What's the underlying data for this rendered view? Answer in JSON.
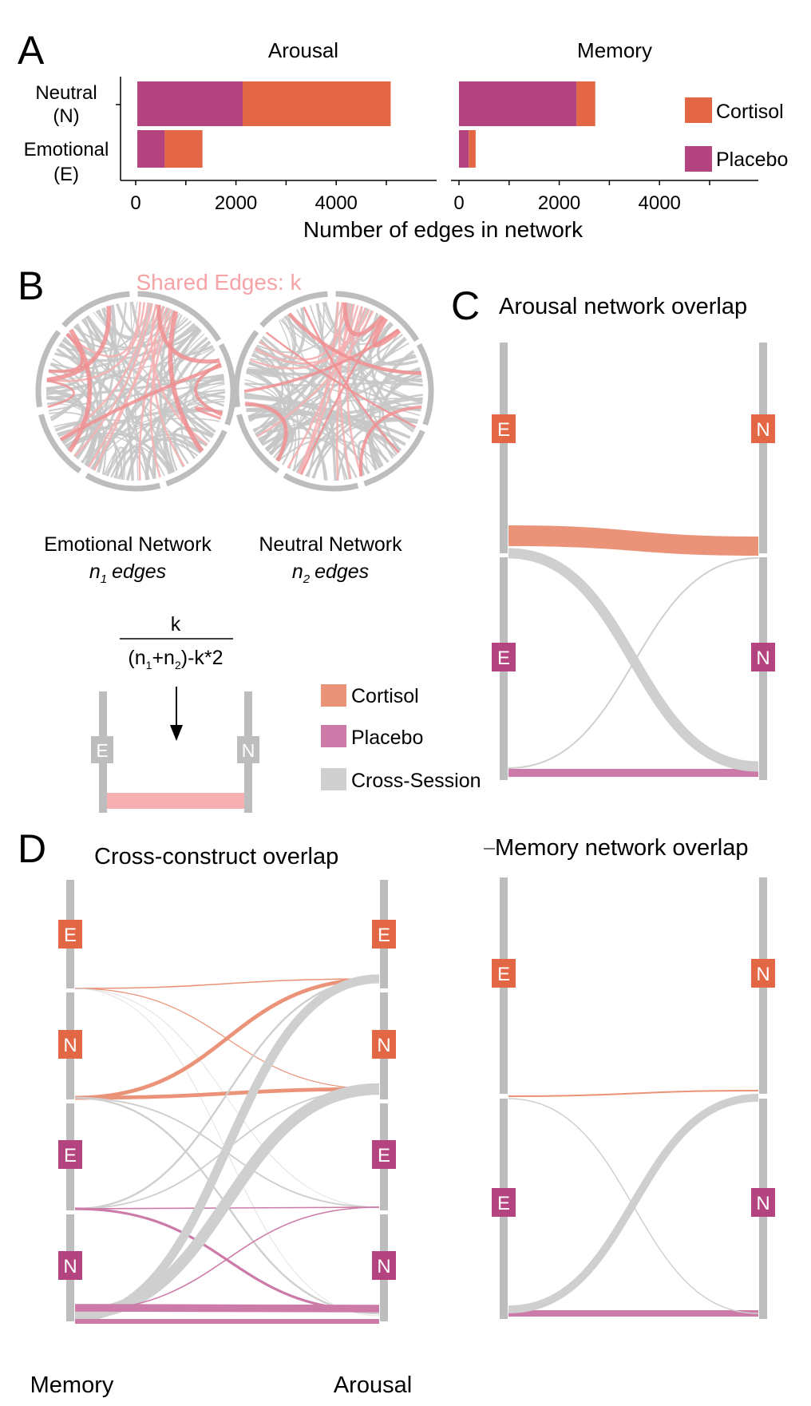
{
  "colors": {
    "cortisol": "#e36745",
    "placebo": "#b44480",
    "cortisol_light": "#eb9378",
    "placebo_light": "#cc7aa8",
    "cross": "#cfcfcf",
    "bar_gray": "#bdbdbd",
    "shared": "#f6b0b2",
    "shared_title": "#f5a3a6"
  },
  "panel_letters": [
    "A",
    "B",
    "C",
    "D"
  ],
  "chart_data": [
    {
      "type": "bar",
      "stacked": true,
      "orientation": "horizontal",
      "xlabel": "Number of edges in network",
      "categories": [
        "Neutral\n(N)",
        "Emotional\n(E)"
      ],
      "facets": [
        {
          "title": "Arousal",
          "series": [
            {
              "name": "Placebo",
              "values": [
                2150,
                560
              ]
            },
            {
              "name": "Cortisol",
              "values": [
                3020,
                770
              ]
            }
          ],
          "xticks": [
            "0",
            "2000",
            "4000"
          ],
          "xlim": [
            0,
            5300
          ]
        },
        {
          "title": "Memory",
          "series": [
            {
              "name": "Placebo",
              "values": [
                2400,
                200
              ]
            },
            {
              "name": "Cortisol",
              "values": [
                380,
                140
              ]
            }
          ],
          "xticks": [
            "0",
            "2000",
            "4000"
          ],
          "xlim": [
            0,
            5300
          ]
        }
      ],
      "legend": [
        "Cortisol",
        "Placebo"
      ],
      "legend_position": "right"
    },
    {
      "type": "sankey",
      "title": "Arousal network overlap",
      "left_nodes": [
        "E",
        "E"
      ],
      "right_nodes": [
        "N",
        "N"
      ],
      "node_groups": [
        "Cortisol",
        "Placebo"
      ],
      "flows": [
        {
          "from": "E Cortisol",
          "to": "N Cortisol",
          "group": "Cortisol",
          "weight": 10
        },
        {
          "from": "E Placebo",
          "to": "N Placebo",
          "group": "Placebo",
          "weight": 5
        },
        {
          "from": "E Placebo",
          "to": "N Cortisol",
          "group": "Cross-Session",
          "weight": 1.5
        },
        {
          "from": "E Placebo",
          "to": "N Placebo",
          "group": "Cross-Session",
          "weight": 8
        }
      ]
    },
    {
      "type": "sankey",
      "title": "Memory network overlap",
      "left_nodes": [
        "E",
        "E"
      ],
      "right_nodes": [
        "N",
        "N"
      ],
      "node_groups": [
        "Cortisol",
        "Placebo"
      ],
      "flows": [
        {
          "from": "E Cortisol",
          "to": "N Cortisol",
          "group": "Cortisol",
          "weight": 1
        },
        {
          "from": "E Placebo",
          "to": "N Placebo",
          "group": "Placebo",
          "weight": 4
        },
        {
          "from": "E Placebo",
          "to": "N Cortisol",
          "group": "Cross-Session",
          "weight": 6
        },
        {
          "from": "E Cortisol",
          "to": "N Placebo",
          "group": "Cross-Session",
          "weight": 1
        }
      ]
    },
    {
      "type": "sankey",
      "title": "Cross-construct overlap",
      "left_title": "Memory",
      "right_title": "Arousal",
      "left_nodes": [
        "E",
        "N",
        "E",
        "N"
      ],
      "right_nodes": [
        "E",
        "N",
        "E",
        "N"
      ],
      "node_groups": [
        "Cortisol",
        "Cortisol",
        "Placebo",
        "Placebo"
      ],
      "flows": [
        {
          "from": 0,
          "to": 0,
          "group": "Cortisol",
          "weight": 1
        },
        {
          "from": 0,
          "to": 1,
          "group": "Cortisol",
          "weight": 0.8
        },
        {
          "from": 0,
          "to": 2,
          "group": "Cross-Session",
          "weight": 0.6
        },
        {
          "from": 0,
          "to": 3,
          "group": "Cross-Session",
          "weight": 0.6
        },
        {
          "from": 1,
          "to": 0,
          "group": "Cortisol",
          "weight": 3
        },
        {
          "from": 1,
          "to": 1,
          "group": "Cortisol",
          "weight": 3
        },
        {
          "from": 1,
          "to": 2,
          "group": "Cross-Session",
          "weight": 1.2
        },
        {
          "from": 1,
          "to": 3,
          "group": "Cross-Session",
          "weight": 1.5
        },
        {
          "from": 2,
          "to": 0,
          "group": "Cross-Session",
          "weight": 1.5
        },
        {
          "from": 2,
          "to": 1,
          "group": "Cross-Session",
          "weight": 1.2
        },
        {
          "from": 2,
          "to": 2,
          "group": "Placebo",
          "weight": 1
        },
        {
          "from": 2,
          "to": 3,
          "group": "Placebo",
          "weight": 2
        },
        {
          "from": 3,
          "to": 0,
          "group": "Cross-Session",
          "weight": 7
        },
        {
          "from": 3,
          "to": 1,
          "group": "Cross-Session",
          "weight": 9
        },
        {
          "from": 3,
          "to": 2,
          "group": "Placebo",
          "weight": 1
        },
        {
          "from": 3,
          "to": 3,
          "group": "Placebo",
          "weight": 6
        }
      ]
    }
  ],
  "panel_b": {
    "shared_title": "Shared Edges: k",
    "emotional_name": "Emotional Network",
    "emotional_edges": "edges",
    "neutral_name": "Neutral Network",
    "neutral_edges": "edges",
    "n_letter": "n",
    "sub1": "1",
    "sub2": "2",
    "formula_num": "k",
    "formula_den_open": "(n",
    "formula_den_plus": "+n",
    "formula_den_close": ")-k*2",
    "diagram_left": "E",
    "diagram_right": "N",
    "legend": [
      "Cortisol",
      "Placebo",
      "Cross-Session"
    ]
  }
}
